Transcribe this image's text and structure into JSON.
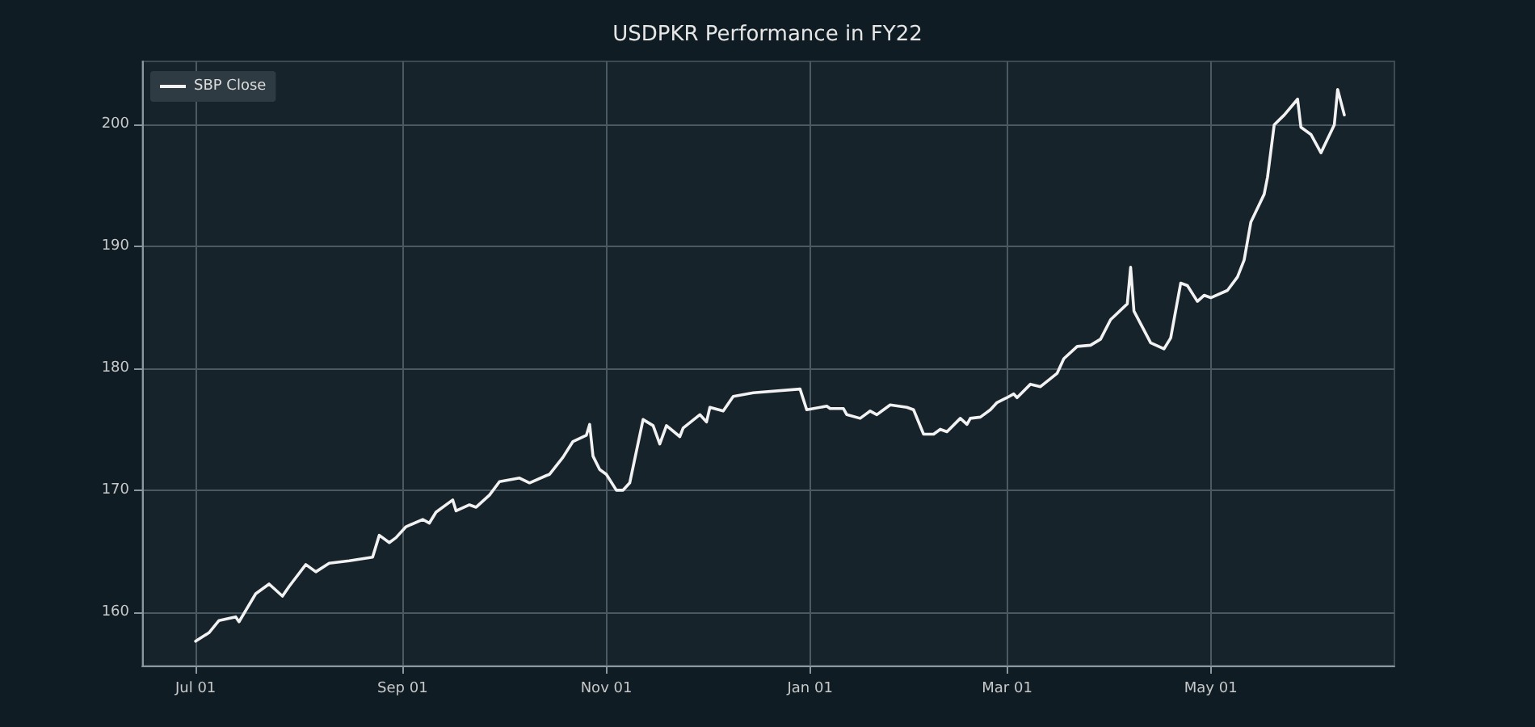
{
  "chart_data": {
    "type": "line",
    "title": "USDPKR Performance in FY22",
    "xlim": [
      "2021-06-15",
      "2022-06-25"
    ],
    "xticks": [
      {
        "value": "2021-07-01",
        "label": "Jul 01"
      },
      {
        "value": "2021-09-01",
        "label": "Sep 01"
      },
      {
        "value": "2021-11-01",
        "label": "Nov 01"
      },
      {
        "value": "2022-01-01",
        "label": "Jan 01"
      },
      {
        "value": "2022-03-01",
        "label": "Mar 01"
      },
      {
        "value": "2022-05-01",
        "label": "May 01"
      }
    ],
    "ylim": [
      155.6,
      205.2
    ],
    "yticks": [
      160,
      170,
      180,
      190,
      200
    ],
    "grid": true,
    "legend": "top left",
    "marker": "none",
    "line_style": "solid",
    "series": [
      {
        "name": "SBP Close",
        "color": "#f2f2f2",
        "x": [
          "2021-07-01",
          "2021-07-05",
          "2021-07-08",
          "2021-07-13",
          "2021-07-14",
          "2021-07-19",
          "2021-07-23",
          "2021-07-27",
          "2021-07-29",
          "2021-08-03",
          "2021-08-06",
          "2021-08-10",
          "2021-08-16",
          "2021-08-23",
          "2021-08-25",
          "2021-08-28",
          "2021-08-30",
          "2021-09-02",
          "2021-09-07",
          "2021-09-09",
          "2021-09-11",
          "2021-09-16",
          "2021-09-17",
          "2021-09-21",
          "2021-09-23",
          "2021-09-27",
          "2021-09-30",
          "2021-10-06",
          "2021-10-09",
          "2021-10-14",
          "2021-10-15",
          "2021-10-19",
          "2021-10-22",
          "2021-10-26",
          "2021-10-27",
          "2021-10-28",
          "2021-10-30",
          "2021-11-01",
          "2021-11-04",
          "2021-11-06",
          "2021-11-08",
          "2021-11-12",
          "2021-11-15",
          "2021-11-17",
          "2021-11-19",
          "2021-11-23",
          "2021-11-24",
          "2021-11-29",
          "2021-12-01",
          "2021-12-02",
          "2021-12-06",
          "2021-12-09",
          "2021-12-15",
          "2021-12-29",
          "2021-12-31",
          "2022-01-06",
          "2022-01-07",
          "2022-01-11",
          "2022-01-12",
          "2022-01-16",
          "2022-01-19",
          "2022-01-21",
          "2022-01-25",
          "2022-01-30",
          "2022-02-01",
          "2022-02-04",
          "2022-02-07",
          "2022-02-09",
          "2022-02-11",
          "2022-02-15",
          "2022-02-17",
          "2022-02-18",
          "2022-02-21",
          "2022-02-24",
          "2022-02-26",
          "2022-03-01",
          "2022-03-03",
          "2022-03-04",
          "2022-03-08",
          "2022-03-11",
          "2022-03-16",
          "2022-03-18",
          "2022-03-22",
          "2022-03-26",
          "2022-03-29",
          "2022-04-01",
          "2022-04-06",
          "2022-04-07",
          "2022-04-08",
          "2022-04-13",
          "2022-04-17",
          "2022-04-19",
          "2022-04-22",
          "2022-04-24",
          "2022-04-27",
          "2022-04-29",
          "2022-05-01",
          "2022-05-06",
          "2022-05-09",
          "2022-05-11",
          "2022-05-13",
          "2022-05-17",
          "2022-05-18",
          "2022-05-20",
          "2022-05-23",
          "2022-05-27",
          "2022-05-28",
          "2022-05-31",
          "2022-06-03",
          "2022-06-07",
          "2022-06-08",
          "2022-06-10"
        ],
        "values": [
          157.6,
          158.3,
          159.3,
          159.6,
          159.2,
          161.5,
          162.3,
          161.3,
          162.1,
          163.9,
          163.3,
          164.0,
          164.2,
          164.5,
          166.3,
          165.7,
          166.1,
          167.0,
          167.6,
          167.3,
          168.2,
          169.2,
          168.3,
          168.8,
          168.6,
          169.6,
          170.7,
          171.0,
          170.6,
          171.2,
          171.3,
          172.7,
          174.0,
          174.5,
          175.4,
          172.8,
          171.7,
          171.3,
          170.0,
          170.0,
          170.6,
          175.8,
          175.3,
          173.8,
          175.3,
          174.4,
          175.1,
          176.2,
          175.6,
          176.8,
          176.5,
          177.7,
          178.0,
          178.3,
          176.6,
          176.9,
          176.7,
          176.7,
          176.2,
          175.9,
          176.5,
          176.2,
          177.0,
          176.8,
          176.6,
          174.6,
          174.6,
          175.0,
          174.8,
          175.9,
          175.4,
          175.9,
          176.0,
          176.6,
          177.2,
          177.6,
          177.9,
          177.6,
          178.7,
          178.5,
          179.6,
          180.8,
          181.8,
          181.9,
          182.4,
          184.0,
          185.3,
          188.3,
          184.7,
          182.1,
          181.6,
          182.5,
          187.0,
          186.8,
          185.5,
          186.0,
          185.8,
          186.4,
          187.5,
          188.9,
          192.0,
          194.3,
          195.7,
          200.0,
          200.8,
          202.1,
          199.8,
          199.2,
          197.7,
          200.0,
          202.9,
          200.8
        ]
      }
    ]
  }
}
